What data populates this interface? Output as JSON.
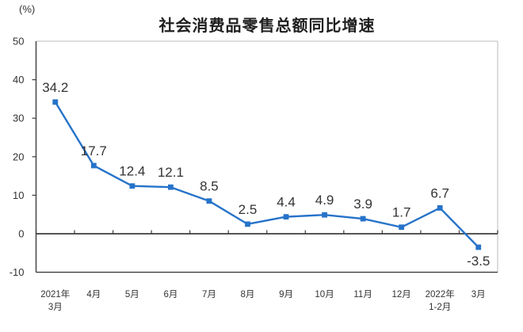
{
  "chart_data": {
    "type": "line",
    "title": "社会消费品零售总额同比增速",
    "y_axis_unit": "(%)",
    "series_name": "社会消费品零售总额同比增速",
    "categories": [
      [
        "2021年",
        "3月"
      ],
      [
        "4月"
      ],
      [
        "5月"
      ],
      [
        "6月"
      ],
      [
        "7月"
      ],
      [
        "8月"
      ],
      [
        "9月"
      ],
      [
        "10月"
      ],
      [
        "11月"
      ],
      [
        "12月"
      ],
      [
        "2022年",
        "1-2月"
      ],
      [
        "3月"
      ]
    ],
    "values": [
      34.2,
      17.7,
      12.4,
      12.1,
      8.5,
      2.5,
      4.4,
      4.9,
      3.9,
      1.7,
      6.7,
      -3.5
    ],
    "data_labels": [
      "34.2",
      "17.7",
      "12.4",
      "12.1",
      "8.5",
      "2.5",
      "4.4",
      "4.9",
      "3.9",
      "1.7",
      "6.7",
      "-3.5"
    ],
    "y_ticks": [
      50,
      40,
      30,
      20,
      10,
      0,
      -10
    ],
    "ylim": [
      -10,
      50
    ],
    "xlabel": "",
    "ylabel": "",
    "grid": "off",
    "legend_position": "none",
    "marker_shape": "square",
    "colors": {
      "line": "#2673c9",
      "marker": "#2673c9",
      "data_label": "#333333",
      "axis_text": "#333333",
      "axis_line": "#3d3d3d",
      "plot_border": "#c9c9c9",
      "title": "#1f1f1f",
      "background": "#ffffff"
    }
  }
}
